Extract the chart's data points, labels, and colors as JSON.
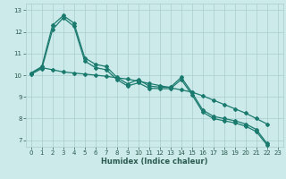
{
  "xlabel": "Humidex (Indice chaleur)",
  "background_color": "#cceaea",
  "grid_color": "#aacccc",
  "line_color": "#1a7a6e",
  "tick_color": "#2a5a50",
  "xlim": [
    -0.5,
    23.5
  ],
  "ylim": [
    6.7,
    13.3
  ],
  "yticks": [
    7,
    8,
    9,
    10,
    11,
    12,
    13
  ],
  "xticks": [
    0,
    1,
    2,
    3,
    4,
    5,
    6,
    7,
    8,
    9,
    10,
    11,
    12,
    13,
    14,
    15,
    16,
    17,
    18,
    19,
    20,
    21,
    22,
    23
  ],
  "line1_x": [
    0,
    1,
    2,
    3,
    4,
    5,
    6,
    7,
    8,
    9,
    10,
    11,
    12,
    13,
    14,
    15,
    16,
    17,
    18,
    19,
    20,
    21,
    22
  ],
  "line1_y": [
    10.1,
    10.4,
    12.3,
    12.75,
    12.4,
    10.8,
    10.5,
    10.4,
    9.9,
    9.6,
    9.8,
    9.5,
    9.45,
    9.45,
    9.9,
    9.2,
    8.4,
    8.1,
    8.0,
    7.9,
    7.75,
    7.5,
    6.85
  ],
  "line2_x": [
    0,
    1,
    2,
    3,
    4,
    5,
    6,
    7,
    8,
    9,
    10,
    11,
    12,
    13,
    14,
    15,
    16,
    17,
    18,
    19,
    20,
    21,
    22
  ],
  "line2_y": [
    10.05,
    10.3,
    12.1,
    12.65,
    12.25,
    10.65,
    10.35,
    10.25,
    9.8,
    9.5,
    9.65,
    9.4,
    9.38,
    9.38,
    9.8,
    9.1,
    8.3,
    8.0,
    7.9,
    7.8,
    7.65,
    7.4,
    6.78
  ],
  "line3_x": [
    0,
    1,
    2,
    3,
    4,
    5,
    6,
    7,
    8,
    9,
    10,
    11,
    12,
    13,
    14,
    15,
    16,
    17,
    18,
    19,
    20,
    21,
    22
  ],
  "line3_y": [
    10.1,
    10.35,
    10.25,
    10.15,
    10.1,
    10.05,
    10.0,
    9.95,
    9.88,
    9.82,
    9.72,
    9.62,
    9.52,
    9.42,
    9.32,
    9.22,
    9.05,
    8.85,
    8.65,
    8.45,
    8.25,
    8.0,
    7.75
  ]
}
